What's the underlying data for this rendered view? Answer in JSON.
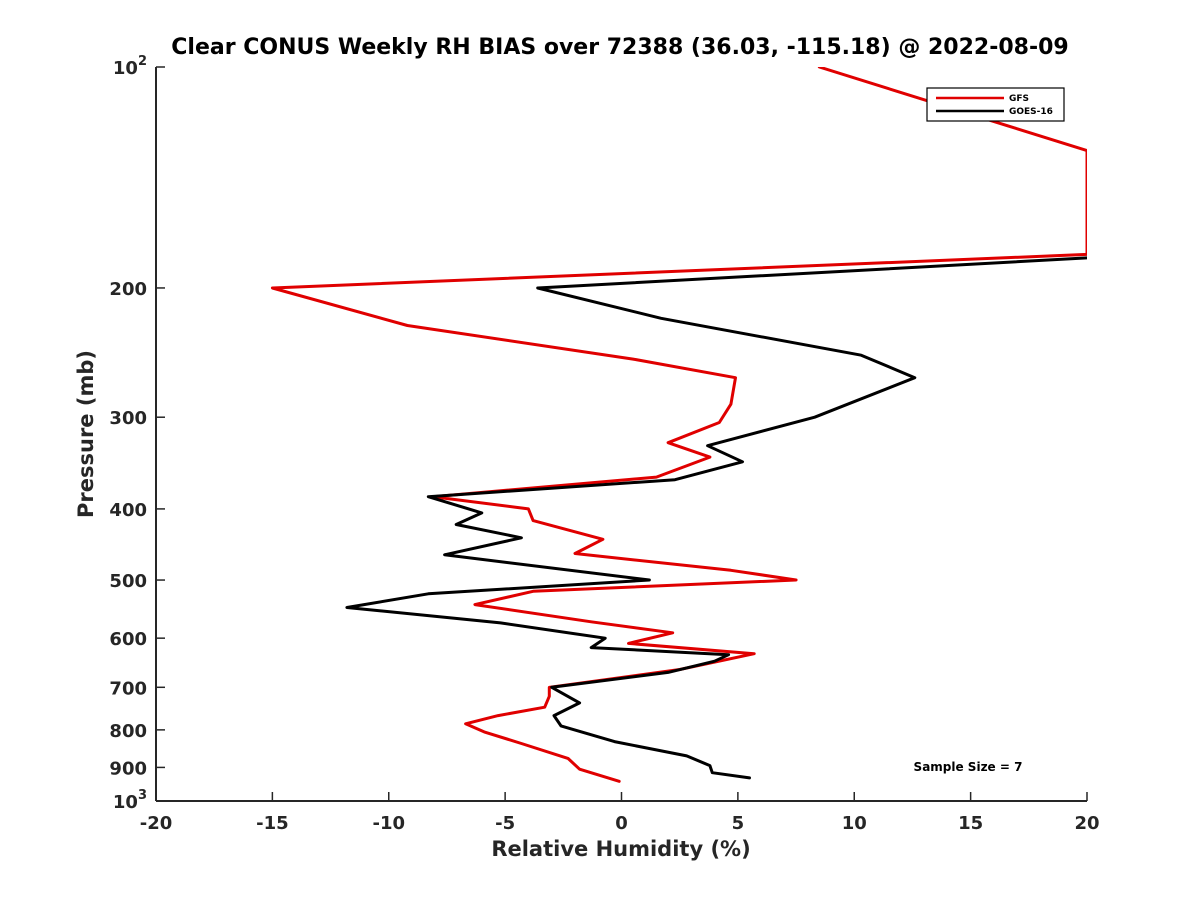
{
  "chart_data": {
    "type": "line",
    "title": "Clear CONUS Weekly RH BIAS over 72388 (36.03, -115.18) @ 2022-08-09",
    "xlabel": "Relative Humidity (%)",
    "ylabel": "Pressure (mb)",
    "xlim": [
      -20,
      20
    ],
    "ylim": [
      100,
      1000
    ],
    "yscale": "log",
    "y_reversed": true,
    "x_ticks": [
      "-20",
      "-15",
      "-10",
      "-5",
      "0",
      "5",
      "10",
      "15",
      "20"
    ],
    "y_ticks": [
      {
        "value": 100,
        "base": "10",
        "exp": "2"
      },
      {
        "value": 200,
        "label": "200"
      },
      {
        "value": 300,
        "label": "300"
      },
      {
        "value": 400,
        "label": "400"
      },
      {
        "value": 500,
        "label": "500"
      },
      {
        "value": 600,
        "label": "600"
      },
      {
        "value": 700,
        "label": "700"
      },
      {
        "value": 800,
        "label": "800"
      },
      {
        "value": 900,
        "label": "900"
      },
      {
        "value": 1000,
        "base": "10",
        "exp": "3"
      }
    ],
    "grid": false,
    "legend_position": "top-right",
    "annotation": "Sample Size = 7",
    "series": [
      {
        "name": "GFS",
        "color": "#e00000",
        "points": [
          {
            "x": 8.5,
            "y": 100
          },
          {
            "x": 20,
            "y": 130
          },
          {
            "x": 20,
            "y": 180
          },
          {
            "x": -15,
            "y": 200
          },
          {
            "x": -9.2,
            "y": 225
          },
          {
            "x": 0.5,
            "y": 250
          },
          {
            "x": 4.9,
            "y": 265
          },
          {
            "x": 4.7,
            "y": 288
          },
          {
            "x": 4.2,
            "y": 305
          },
          {
            "x": 2,
            "y": 325
          },
          {
            "x": 3.8,
            "y": 340
          },
          {
            "x": 1.5,
            "y": 362
          },
          {
            "x": -8.1,
            "y": 385
          },
          {
            "x": -4,
            "y": 400
          },
          {
            "x": -3.8,
            "y": 415
          },
          {
            "x": -0.8,
            "y": 440
          },
          {
            "x": -2,
            "y": 460
          },
          {
            "x": 4.7,
            "y": 485
          },
          {
            "x": 7.5,
            "y": 500
          },
          {
            "x": -3.8,
            "y": 518
          },
          {
            "x": -6.3,
            "y": 540
          },
          {
            "x": -1.3,
            "y": 570
          },
          {
            "x": 2.2,
            "y": 590
          },
          {
            "x": 0.3,
            "y": 610
          },
          {
            "x": 5.7,
            "y": 630
          },
          {
            "x": 2.5,
            "y": 662
          },
          {
            "x": -3.1,
            "y": 700
          },
          {
            "x": -3.1,
            "y": 720
          },
          {
            "x": -3.3,
            "y": 745
          },
          {
            "x": -5.3,
            "y": 765
          },
          {
            "x": -6.7,
            "y": 785
          },
          {
            "x": -5.9,
            "y": 805
          },
          {
            "x": -4.3,
            "y": 835
          },
          {
            "x": -2.3,
            "y": 875
          },
          {
            "x": -1.8,
            "y": 905
          },
          {
            "x": -0.1,
            "y": 940
          }
        ]
      },
      {
        "name": "GOES-16",
        "color": "#000000",
        "points": [
          {
            "x": 20,
            "y": 182
          },
          {
            "x": -3.6,
            "y": 200
          },
          {
            "x": 1.7,
            "y": 220
          },
          {
            "x": 10.3,
            "y": 247
          },
          {
            "x": 12.6,
            "y": 265
          },
          {
            "x": 8.3,
            "y": 300
          },
          {
            "x": 3.7,
            "y": 328
          },
          {
            "x": 5.2,
            "y": 345
          },
          {
            "x": 2.3,
            "y": 365
          },
          {
            "x": -8.3,
            "y": 385
          },
          {
            "x": -6,
            "y": 405
          },
          {
            "x": -7.1,
            "y": 420
          },
          {
            "x": -4.3,
            "y": 438
          },
          {
            "x": -7.6,
            "y": 462
          },
          {
            "x": 1.2,
            "y": 500
          },
          {
            "x": -8.3,
            "y": 522
          },
          {
            "x": -11.8,
            "y": 545
          },
          {
            "x": -5.2,
            "y": 572
          },
          {
            "x": -0.7,
            "y": 600
          },
          {
            "x": -1.3,
            "y": 618
          },
          {
            "x": 4.6,
            "y": 632
          },
          {
            "x": 4,
            "y": 645
          },
          {
            "x": 2,
            "y": 668
          },
          {
            "x": -3,
            "y": 700
          },
          {
            "x": -1.8,
            "y": 735
          },
          {
            "x": -2.9,
            "y": 765
          },
          {
            "x": -2.6,
            "y": 790
          },
          {
            "x": -0.3,
            "y": 830
          },
          {
            "x": 2.8,
            "y": 868
          },
          {
            "x": 3.8,
            "y": 895
          },
          {
            "x": 3.9,
            "y": 915
          },
          {
            "x": 5.5,
            "y": 930
          }
        ]
      }
    ]
  }
}
